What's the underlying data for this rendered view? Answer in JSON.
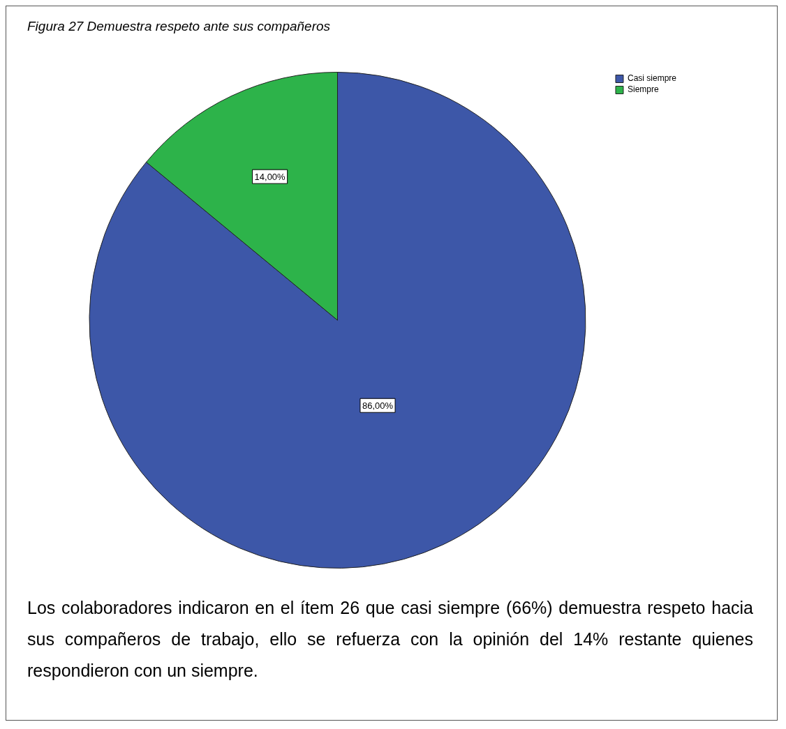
{
  "chart_data": {
    "type": "pie",
    "title": "Figura 27 Demuestra respeto ante sus compañeros",
    "categories": [
      "Casi siempre",
      "Siempre"
    ],
    "values": [
      86,
      14
    ],
    "colors": [
      "#3d57a8",
      "#2db34a"
    ],
    "value_labels": [
      "86,00%",
      "14,00%"
    ],
    "legend": "top right",
    "annotations": [
      "Los colaboradores indicaron en el ítem 26 que casi siempre (66%) demuestra respeto hacia sus compañeros de trabajo, ello se refuerza con la opinión del 14% restante quienes respondieron con un siempre."
    ]
  }
}
